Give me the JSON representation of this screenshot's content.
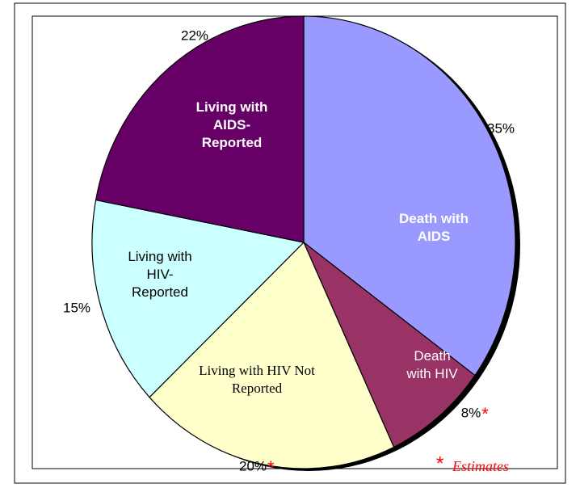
{
  "chart_data": {
    "type": "pie",
    "categories": [
      "Death with AIDS",
      "Death with HIV",
      "Living with HIV Not Reported",
      "Living with HIV-Reported",
      "Living with AIDS-Reported"
    ],
    "values": [
      35,
      8,
      20,
      15,
      22
    ],
    "value_labels": [
      "35%",
      "8%",
      "20%",
      "15%",
      "22%"
    ],
    "colors": [
      "#9999ff",
      "#993366",
      "#ffffcc",
      "#ccffff",
      "#660066"
    ],
    "estimated": [
      false,
      true,
      true,
      false,
      false
    ],
    "footnote": {
      "marker": "*",
      "text": "Estimates",
      "color": "#ff0000"
    }
  }
}
